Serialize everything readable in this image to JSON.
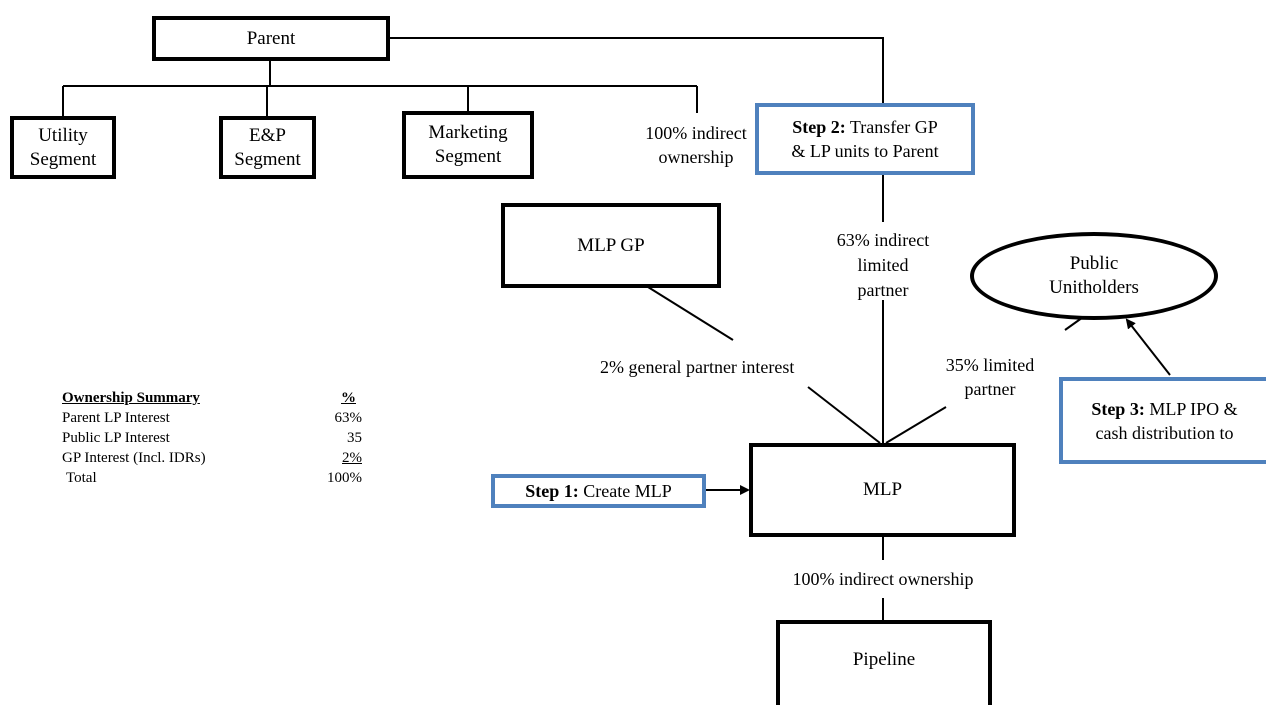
{
  "nodes": {
    "parent": "Parent",
    "utility": [
      "Utility",
      "Segment"
    ],
    "ep": [
      "E&P",
      "Segment"
    ],
    "marketing": [
      "Marketing",
      "Segment"
    ],
    "mlp_gp": "MLP GP",
    "public_unitholders": [
      "Public",
      "Unitholders"
    ],
    "mlp": "MLP",
    "pipeline": "Pipeline"
  },
  "labels": {
    "indirect_ownership_top": [
      "100% indirect",
      "ownership"
    ],
    "indirect_lp": [
      "63% indirect",
      "limited",
      "partner"
    ],
    "gp_interest": "2% general partner interest",
    "public_lp": [
      "35% limited",
      "partner"
    ],
    "indirect_ownership_bottom": "100% indirect ownership"
  },
  "steps": {
    "step1": {
      "bold": "Step 1:",
      "text": " Create MLP"
    },
    "step2": {
      "bold": "Step 2:",
      "text": " Transfer GP",
      "line2": "& LP units to Parent"
    },
    "step3": {
      "bold": "Step 3:",
      "text": " MLP IPO &",
      "line2": "cash distribution to"
    }
  },
  "summary": {
    "header_label": "Ownership Summary",
    "header_unit": "%",
    "rows": [
      {
        "label": "Parent LP Interest",
        "value": "63%",
        "underline": false
      },
      {
        "label": "Public LP Interest",
        "value": "35",
        "underline": false
      },
      {
        "label": "GP Interest (Incl. IDRs)",
        "value": "2%",
        "underline": true
      },
      {
        "label": " Total",
        "value": "100%",
        "underline": false
      }
    ]
  }
}
